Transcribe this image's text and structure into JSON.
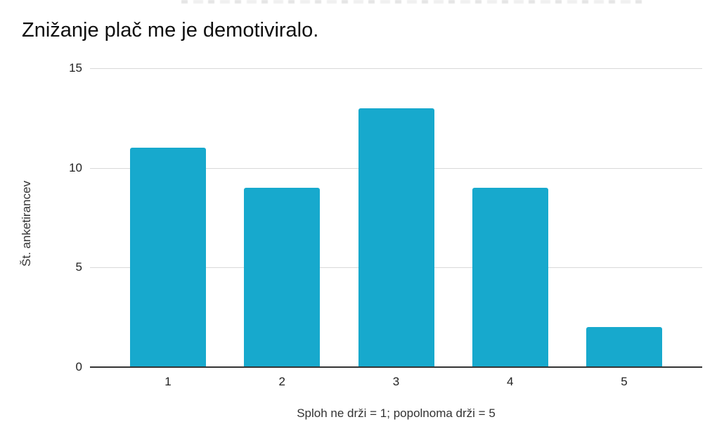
{
  "chart_data": {
    "type": "bar",
    "title": "Znižanje plač me je demotiviralo.",
    "categories": [
      "1",
      "2",
      "3",
      "4",
      "5"
    ],
    "values": [
      11,
      9,
      13,
      9,
      2
    ],
    "xlabel": "Sploh ne drži = 1; popolnoma drži = 5",
    "ylabel": "Št. anketirancev",
    "yticks": [
      0,
      5,
      10,
      15
    ],
    "ylim": [
      0,
      15
    ],
    "grid": true,
    "legend": "none",
    "colors": {
      "bar": "#17a9cd",
      "gridline": "#d9d9d9",
      "axis_line": "#333333",
      "title_text": "#0f0f0f",
      "label_text": "#222222"
    }
  }
}
